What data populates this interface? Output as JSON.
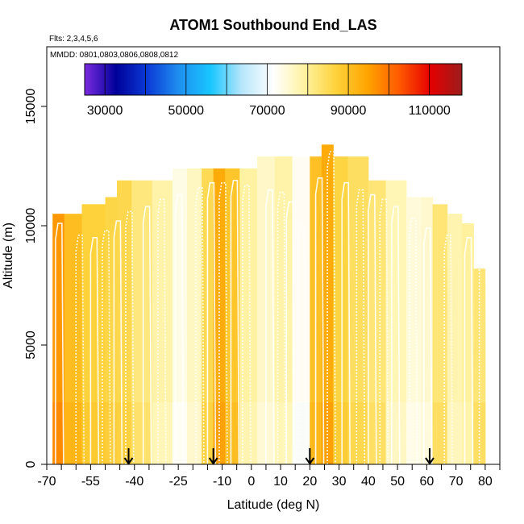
{
  "chart_data": {
    "type": "heatmap",
    "title": "ATOM1 Southbound End_LAS",
    "flights_label": "Flts: 2,3,4,5,6",
    "mmdd_label": "MMDD: 0801,0803,0806,0808,0812",
    "xlabel": "Latitude (deg N)",
    "ylabel": "Altitude (m)",
    "xlim": [
      -70,
      85
    ],
    "ylim": [
      0,
      17500
    ],
    "x_ticks": [
      -70,
      -55,
      -40,
      -25,
      -10,
      0,
      10,
      20,
      30,
      40,
      50,
      60,
      70,
      80
    ],
    "y_ticks": [
      0,
      5000,
      10000,
      15000
    ],
    "colorbar": {
      "min": 25000,
      "max": 118000,
      "ticks": [
        30000,
        50000,
        70000,
        90000,
        110000
      ],
      "stops": [
        "#7b2be0",
        "#00009a",
        "#0b3bd6",
        "#1f8ff0",
        "#18c6ff",
        "#b7e6fb",
        "#ffffff",
        "#fff2a0",
        "#fdd23a",
        "#ffa400",
        "#ff5a00",
        "#e50000",
        "#9b1c1c"
      ]
    },
    "arrows_latitude": [
      -42,
      -13,
      20,
      61
    ],
    "columns": [
      {
        "x0": -68,
        "x1": -64,
        "top": 10500,
        "value": 96000
      },
      {
        "x0": -64,
        "x1": -58,
        "top": 10500,
        "value": 90500
      },
      {
        "x0": -58,
        "x1": -50,
        "top": 10900,
        "value": 87000
      },
      {
        "x0": -50,
        "x1": -46,
        "top": 11200,
        "value": 86000
      },
      {
        "x0": -46,
        "x1": -41,
        "top": 11900,
        "value": 85500
      },
      {
        "x0": -41,
        "x1": -34,
        "top": 11900,
        "value": 82000
      },
      {
        "x0": -34,
        "x1": -27,
        "top": 11900,
        "value": 78500
      },
      {
        "x0": -27,
        "x1": -22,
        "top": 12400,
        "value": 73500
      },
      {
        "x0": -22,
        "x1": -17,
        "top": 12400,
        "value": 76500
      },
      {
        "x0": -17,
        "x1": -13,
        "top": 12400,
        "value": 85000
      },
      {
        "x0": -13,
        "x1": -9,
        "top": 12400,
        "value": 93500
      },
      {
        "x0": -9,
        "x1": -4,
        "top": 12400,
        "value": 89000
      },
      {
        "x0": -4,
        "x1": 2,
        "top": 12400,
        "value": 79000
      },
      {
        "x0": 2,
        "x1": 8,
        "top": 12900,
        "value": 76000
      },
      {
        "x0": 8,
        "x1": 14,
        "top": 12900,
        "value": 78500
      },
      {
        "x0": 14,
        "x1": 20,
        "top": 12900,
        "value": 72500
      },
      {
        "x0": 20,
        "x1": 24,
        "top": 12900,
        "value": 90000
      },
      {
        "x0": 24,
        "x1": 28,
        "top": 13400,
        "value": 93500
      },
      {
        "x0": 28,
        "x1": 33,
        "top": 12900,
        "value": 86500
      },
      {
        "x0": 33,
        "x1": 40,
        "top": 12900,
        "value": 84000
      },
      {
        "x0": 40,
        "x1": 46,
        "top": 11900,
        "value": 82500
      },
      {
        "x0": 46,
        "x1": 53,
        "top": 11900,
        "value": 77500
      },
      {
        "x0": 53,
        "x1": 58,
        "top": 11200,
        "value": 74500
      },
      {
        "x0": 58,
        "x1": 62,
        "top": 11200,
        "value": 75500
      },
      {
        "x0": 62,
        "x1": 67,
        "top": 10900,
        "value": 82500
      },
      {
        "x0": 67,
        "x1": 72,
        "top": 10500,
        "value": 78000
      },
      {
        "x0": 72,
        "x1": 76,
        "top": 10100,
        "value": 79500
      },
      {
        "x0": 76,
        "x1": 80,
        "top": 8200,
        "value": 82500
      }
    ],
    "profiles_x": [
      -67,
      -60,
      -55,
      -51,
      -47,
      -43,
      -37,
      -32,
      -26,
      -19,
      -15,
      -11,
      -7,
      -3,
      5,
      9,
      12,
      16,
      22,
      26,
      31,
      36,
      40,
      44,
      48,
      54,
      59,
      66,
      73,
      78
    ],
    "profiles_top": [
      10100,
      9600,
      9500,
      9800,
      10200,
      10600,
      10800,
      11100,
      11300,
      11600,
      11800,
      11800,
      11900,
      11700,
      11500,
      11400,
      11000,
      10100,
      12000,
      13100,
      11800,
      11500,
      11300,
      11100,
      10800,
      10300,
      9900,
      9600,
      9500,
      9300
    ]
  }
}
